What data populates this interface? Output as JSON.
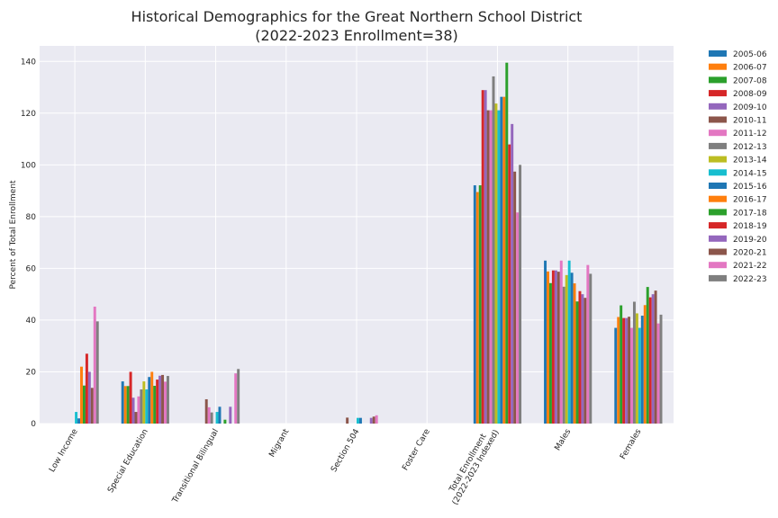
{
  "chart_data": {
    "type": "bar",
    "title_line1": "Historical Demographics for the Great Northern School District",
    "title_line2": "(2022-2023 Enrollment=38)",
    "ylabel": "Percent of Total Enrollment",
    "ylim": [
      0,
      146
    ],
    "yticks": [
      "0",
      "20",
      "40",
      "60",
      "80",
      "100",
      "120",
      "140"
    ],
    "grid": true,
    "legend_position": "outside-right",
    "categories": [
      [
        "Low Income"
      ],
      [
        "Special Education"
      ],
      [
        "Transitional Bilingual"
      ],
      [
        "Migrant"
      ],
      [
        "Section 504"
      ],
      [
        "Foster Care"
      ],
      [
        "Total Enrollment",
        "(2022-2023 Indexed)"
      ],
      [
        "Males"
      ],
      [
        "Females"
      ]
    ],
    "series": [
      {
        "name": "2005-06",
        "color": "#1f77b4",
        "values": [
          0,
          16.3,
          0,
          0,
          0,
          0,
          92.1,
          63.0,
          37.0
        ]
      },
      {
        "name": "2006-07",
        "color": "#ff7f0e",
        "values": [
          0,
          14.5,
          0,
          0,
          0,
          0,
          89.5,
          58.8,
          41.2
        ]
      },
      {
        "name": "2007-08",
        "color": "#2ca02c",
        "values": [
          0,
          14.5,
          0,
          0,
          0,
          0,
          92.1,
          54.3,
          45.7
        ]
      },
      {
        "name": "2008-09",
        "color": "#d62728",
        "values": [
          0,
          20.0,
          0,
          0,
          0,
          0,
          128.9,
          59.2,
          40.8
        ]
      },
      {
        "name": "2009-10",
        "color": "#9467bd",
        "values": [
          0,
          10.0,
          0,
          0,
          0,
          0,
          128.9,
          59.2,
          40.8
        ]
      },
      {
        "name": "2010-11",
        "color": "#8c564b",
        "values": [
          0,
          4.5,
          9.4,
          0,
          2.3,
          0,
          121.1,
          58.7,
          41.3
        ]
      },
      {
        "name": "2011-12",
        "color": "#e377c2",
        "values": [
          0,
          10.5,
          6.3,
          0,
          0,
          0,
          121.1,
          63.0,
          37.0
        ]
      },
      {
        "name": "2012-13",
        "color": "#7f7f7f",
        "values": [
          0,
          13.2,
          4.3,
          0,
          0,
          0,
          134.2,
          52.9,
          47.1
        ]
      },
      {
        "name": "2013-14",
        "color": "#bcbd22",
        "values": [
          0,
          16.3,
          0,
          0,
          0,
          0,
          123.7,
          57.4,
          42.6
        ]
      },
      {
        "name": "2014-15",
        "color": "#17becf",
        "values": [
          4.5,
          13.2,
          4.5,
          0,
          2.2,
          0,
          121.1,
          63.0,
          37.0
        ]
      },
      {
        "name": "2015-16",
        "color": "#1f77b4",
        "values": [
          2.0,
          18.0,
          6.5,
          0,
          2.2,
          0,
          126.3,
          58.3,
          41.7
        ]
      },
      {
        "name": "2016-17",
        "color": "#ff7f0e",
        "values": [
          22.0,
          20.0,
          0,
          0,
          0,
          0,
          126.3,
          54.2,
          45.8
        ]
      },
      {
        "name": "2017-18",
        "color": "#2ca02c",
        "values": [
          14.7,
          14.6,
          1.5,
          0,
          0,
          0,
          139.5,
          47.2,
          52.8
        ]
      },
      {
        "name": "2018-19",
        "color": "#d62728",
        "values": [
          27.0,
          17.0,
          0,
          0,
          0,
          0,
          107.9,
          51.2,
          48.8
        ]
      },
      {
        "name": "2019-20",
        "color": "#9467bd",
        "values": [
          20.0,
          18.5,
          6.5,
          0,
          2.2,
          0,
          115.8,
          50.0,
          50.0
        ]
      },
      {
        "name": "2020-21",
        "color": "#8c564b",
        "values": [
          13.8,
          18.8,
          0,
          0,
          2.7,
          0,
          97.4,
          48.6,
          51.4
        ]
      },
      {
        "name": "2021-22",
        "color": "#e377c2",
        "values": [
          45.2,
          16.2,
          19.4,
          0,
          3.2,
          0,
          81.6,
          61.3,
          38.7
        ]
      },
      {
        "name": "2022-23",
        "color": "#7f7f7f",
        "values": [
          39.5,
          18.4,
          21.1,
          0,
          0,
          0,
          100.0,
          57.9,
          42.1
        ]
      }
    ]
  }
}
